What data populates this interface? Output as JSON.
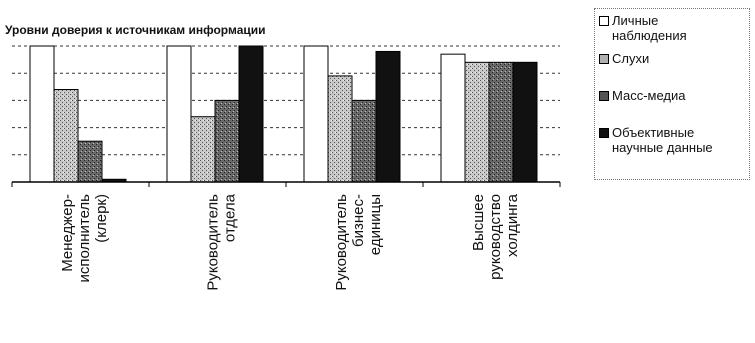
{
  "chart_data": {
    "type": "bar",
    "title": "Уровни доверия к  источникам информации",
    "categories": [
      [
        "Менеджер-",
        "исполнитель",
        "(клерк)"
      ],
      [
        "Руководитель",
        "отдела"
      ],
      [
        "Руководитель",
        "бизнес-",
        "единицы"
      ],
      [
        "Высшее",
        "руководство",
        "холдинга"
      ]
    ],
    "series": [
      {
        "name": "Личные наблюдения",
        "values": [
          5.0,
          5.0,
          5.0,
          4.7
        ],
        "color": "#ffffff",
        "pattern": "white"
      },
      {
        "name": "Слухи",
        "values": [
          3.4,
          2.4,
          3.9,
          4.4
        ],
        "color": "#b0b0b0",
        "pattern": "speckle-light"
      },
      {
        "name": "Масс-медиа",
        "values": [
          1.5,
          3.0,
          3.0,
          4.4
        ],
        "color": "#555555",
        "pattern": "speckle-dark"
      },
      {
        "name": "Объективные научные данные",
        "values": [
          0.1,
          5.0,
          4.8,
          4.4
        ],
        "color": "#111111",
        "pattern": "black"
      }
    ],
    "ylim": [
      0,
      5
    ],
    "grid": true,
    "legend": "right"
  },
  "legend": {
    "items": [
      {
        "label": "Личные\nнаблюдения",
        "color": "#ffffff"
      },
      {
        "label": "Слухи",
        "color": "#b0b0b0"
      },
      {
        "label": "Масс-медиа",
        "color": "#555555"
      },
      {
        "label": "Объективные\nнаучные данные",
        "color": "#111111"
      }
    ]
  }
}
